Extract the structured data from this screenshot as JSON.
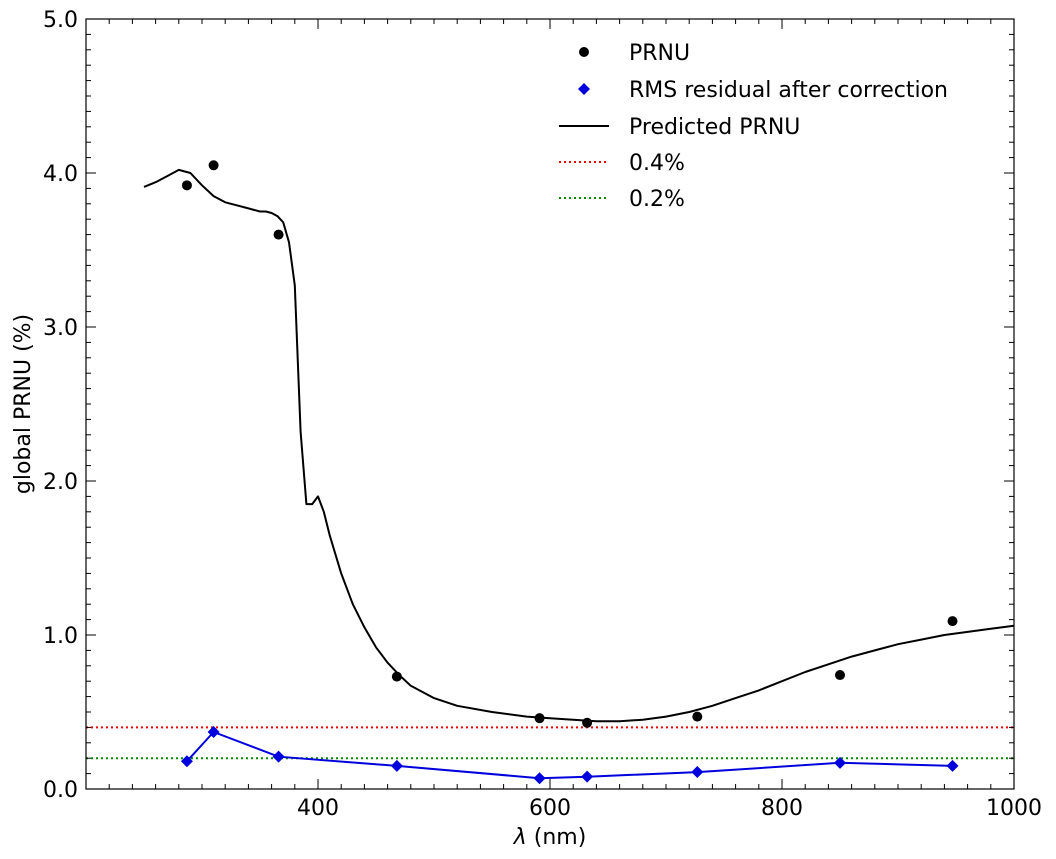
{
  "chart_data": {
    "type": "line",
    "title": "",
    "xlabel_symbol": "λ",
    "xlabel_unit": "(nm)",
    "ylabel": "global PRNU (%)",
    "xlim": [
      200,
      1000
    ],
    "ylim": [
      0,
      5
    ],
    "x_ticks": [
      400,
      600,
      800,
      1000
    ],
    "y_ticks": [
      0,
      1,
      2,
      3,
      4,
      5
    ],
    "y_tick_labels": [
      "0.0",
      "1.0",
      "2.0",
      "3.0",
      "4.0",
      "5.0"
    ],
    "legend_position": "top-right",
    "grid": false,
    "series": [
      {
        "name": "PRNU",
        "style": "scatter",
        "marker": "circle",
        "color": "#000000",
        "x": [
          287,
          310,
          366,
          468,
          591,
          632,
          727,
          850,
          947
        ],
        "y": [
          3.92,
          4.05,
          3.6,
          0.73,
          0.46,
          0.43,
          0.47,
          0.74,
          1.09
        ]
      },
      {
        "name": "RMS residual after correction",
        "style": "line-marker",
        "marker": "diamond",
        "color": "#0000dd",
        "x": [
          287,
          310,
          366,
          468,
          591,
          632,
          727,
          850,
          947
        ],
        "y": [
          0.18,
          0.37,
          0.21,
          0.15,
          0.07,
          0.08,
          0.11,
          0.17,
          0.15
        ]
      },
      {
        "name": "Predicted PRNU",
        "style": "line",
        "color": "#000000",
        "x": [
          250,
          260,
          270,
          280,
          290,
          300,
          310,
          320,
          330,
          340,
          350,
          355,
          360,
          365,
          370,
          375,
          380,
          385,
          390,
          395,
          400,
          405,
          410,
          420,
          430,
          440,
          450,
          460,
          470,
          480,
          500,
          520,
          550,
          580,
          600,
          620,
          640,
          660,
          680,
          700,
          720,
          740,
          760,
          780,
          800,
          820,
          840,
          860,
          880,
          900,
          920,
          940,
          960,
          980,
          1000
        ],
        "y": [
          3.91,
          3.94,
          3.98,
          4.02,
          4.0,
          3.92,
          3.85,
          3.81,
          3.79,
          3.77,
          3.75,
          3.75,
          3.74,
          3.72,
          3.68,
          3.55,
          3.27,
          2.32,
          1.85,
          1.85,
          1.9,
          1.8,
          1.65,
          1.4,
          1.2,
          1.05,
          0.92,
          0.82,
          0.74,
          0.67,
          0.59,
          0.54,
          0.5,
          0.47,
          0.46,
          0.45,
          0.44,
          0.44,
          0.45,
          0.47,
          0.5,
          0.54,
          0.59,
          0.64,
          0.7,
          0.76,
          0.81,
          0.86,
          0.9,
          0.94,
          0.97,
          1.0,
          1.02,
          1.04,
          1.06
        ]
      },
      {
        "name": "0.4%",
        "style": "hline",
        "linestyle": "dotted",
        "color": "#ee0000",
        "y": 0.4
      },
      {
        "name": "0.2%",
        "style": "hline",
        "linestyle": "dotted",
        "color": "#008800",
        "y": 0.2
      }
    ]
  }
}
